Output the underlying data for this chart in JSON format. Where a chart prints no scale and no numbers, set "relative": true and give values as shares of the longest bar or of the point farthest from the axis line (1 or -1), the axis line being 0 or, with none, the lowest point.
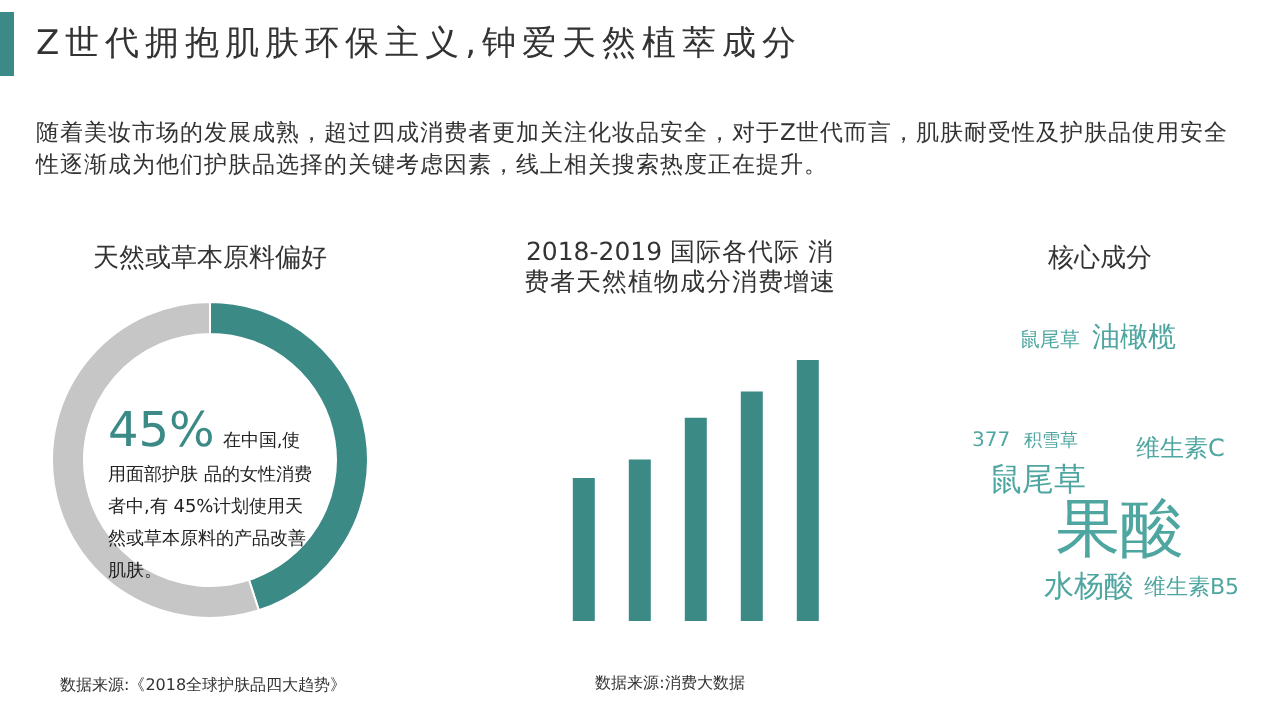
{
  "chart_data": [
    {
      "type": "other",
      "title": "Z世代拥抱肌肤环保主义,钟爱天然植萃成分",
      "subtitle": "随着美妆市场的发展成熟，超过四成消费者更加关注化妆品安全，对于Z世代而言，肌肤耐受性及护肤品使用安全性逐渐成为他们护肤品选择的关键考虑因素，线上相关搜索热度正在提升。"
    },
    {
      "type": "donut",
      "title": "天然或草本原料偏好",
      "categories": [
        null,
        null
      ],
      "values": [
        45,
        55
      ],
      "colors": [
        "#3b8a86",
        "#c6c6c6"
      ],
      "annotations": [
        "45%",
        "在中国,使用面部护肤 品的女性消费者中,有 45%计划使用天然或草本原料的产品改善肌肤。",
        "数据来源:《2018全球护肤品四大趋势》"
      ]
    },
    {
      "type": "bar",
      "title": "2018-2019 国际各代际 消费者天然植物成分消费增速",
      "categories": [
        null,
        null,
        null,
        null,
        null
      ],
      "values": [
        0.55,
        0.62,
        0.78,
        0.88,
        1
      ],
      "color": "#3b8a86",
      "relative": true,
      "annotations": [
        "数据来源:消费大数据"
      ]
    },
    {
      "type": "other",
      "title": "核心成分",
      "annotations": [
        "果酸",
        "鼠尾草",
        "水杨酸",
        "油橄榄",
        "维生素C",
        "维生素B5",
        "377",
        "积雪草",
        "鼠尾草"
      ]
    }
  ]
}
